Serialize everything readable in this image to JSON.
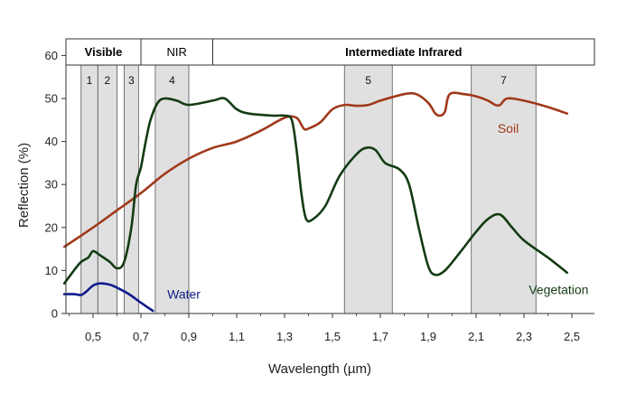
{
  "chart_data": {
    "type": "line",
    "xlabel": "Wavelength (µm)",
    "ylabel": "Reflection (%)",
    "xlim": [
      0.38,
      2.5
    ],
    "ylim": [
      0,
      62
    ],
    "x_ticks": [
      {
        "value": 0.5,
        "label": "0,5"
      },
      {
        "value": 0.7,
        "label": "0,7"
      },
      {
        "value": 0.9,
        "label": "0,9"
      },
      {
        "value": 1.1,
        "label": "1,1"
      },
      {
        "value": 1.3,
        "label": "1,3"
      },
      {
        "value": 1.5,
        "label": "1,5"
      },
      {
        "value": 1.7,
        "label": "1,7"
      },
      {
        "value": 1.9,
        "label": "1,9"
      },
      {
        "value": 2.1,
        "label": "2,1"
      },
      {
        "value": 2.3,
        "label": "2,3"
      },
      {
        "value": 2.5,
        "label": "2,5"
      }
    ],
    "y_ticks": [
      {
        "value": 0,
        "label": "0"
      },
      {
        "value": 10,
        "label": "10"
      },
      {
        "value": 20,
        "label": "20"
      },
      {
        "value": 30,
        "label": "30"
      },
      {
        "value": 40,
        "label": "40"
      },
      {
        "value": 50,
        "label": "50"
      },
      {
        "value": 60,
        "label": "60"
      }
    ],
    "regions": [
      {
        "label": "Visible",
        "from": 0.38,
        "to": 0.7,
        "bold": true
      },
      {
        "label": "NIR",
        "from": 0.7,
        "to": 1.0,
        "bold": false
      },
      {
        "label": "Intermediate Infrared",
        "from": 1.0,
        "to": 2.5,
        "bold": true
      }
    ],
    "bands": [
      {
        "label": "1",
        "from": 0.45,
        "to": 0.52
      },
      {
        "label": "2",
        "from": 0.52,
        "to": 0.6
      },
      {
        "label": "3",
        "from": 0.63,
        "to": 0.69
      },
      {
        "label": "4",
        "from": 0.76,
        "to": 0.9
      },
      {
        "label": "5",
        "from": 1.55,
        "to": 1.75
      },
      {
        "label": "7",
        "from": 2.08,
        "to": 2.35
      }
    ],
    "series": [
      {
        "name": "Soil",
        "color": "#a0391a",
        "points": [
          [
            0.38,
            15.5
          ],
          [
            0.5,
            20
          ],
          [
            0.6,
            24
          ],
          [
            0.7,
            28
          ],
          [
            0.8,
            32.5
          ],
          [
            0.9,
            36
          ],
          [
            1.0,
            38.5
          ],
          [
            1.1,
            40
          ],
          [
            1.2,
            42.5
          ],
          [
            1.3,
            45.5
          ],
          [
            1.35,
            45.5
          ],
          [
            1.38,
            43
          ],
          [
            1.4,
            43
          ],
          [
            1.45,
            44.5
          ],
          [
            1.5,
            47.5
          ],
          [
            1.55,
            48.5
          ],
          [
            1.6,
            48.3
          ],
          [
            1.65,
            48.5
          ],
          [
            1.7,
            49.5
          ],
          [
            1.8,
            51
          ],
          [
            1.85,
            51
          ],
          [
            1.9,
            49
          ],
          [
            1.93,
            46.5
          ],
          [
            1.95,
            46
          ],
          [
            1.97,
            47
          ],
          [
            1.99,
            51
          ],
          [
            2.05,
            51
          ],
          [
            2.1,
            50.5
          ],
          [
            2.15,
            49.5
          ],
          [
            2.18,
            48.5
          ],
          [
            2.2,
            48.5
          ],
          [
            2.23,
            50
          ],
          [
            2.3,
            49.5
          ],
          [
            2.4,
            48
          ],
          [
            2.48,
            46.5
          ]
        ]
      },
      {
        "name": "Vegetation",
        "color": "#133b13",
        "points": [
          [
            0.38,
            7
          ],
          [
            0.42,
            10
          ],
          [
            0.45,
            12
          ],
          [
            0.48,
            13
          ],
          [
            0.5,
            14.5
          ],
          [
            0.53,
            13.5
          ],
          [
            0.57,
            12
          ],
          [
            0.6,
            10.5
          ],
          [
            0.63,
            12
          ],
          [
            0.66,
            20
          ],
          [
            0.68,
            30
          ],
          [
            0.7,
            34
          ],
          [
            0.72,
            40
          ],
          [
            0.74,
            45
          ],
          [
            0.77,
            49
          ],
          [
            0.8,
            50
          ],
          [
            0.85,
            49.5
          ],
          [
            0.9,
            48.5
          ],
          [
            1.0,
            49.5
          ],
          [
            1.05,
            50
          ],
          [
            1.1,
            47.5
          ],
          [
            1.15,
            46.5
          ],
          [
            1.25,
            46
          ],
          [
            1.3,
            46
          ],
          [
            1.33,
            45
          ],
          [
            1.35,
            38
          ],
          [
            1.37,
            28
          ],
          [
            1.39,
            22
          ],
          [
            1.42,
            22
          ],
          [
            1.47,
            25
          ],
          [
            1.53,
            32
          ],
          [
            1.6,
            37
          ],
          [
            1.64,
            38.5
          ],
          [
            1.68,
            38
          ],
          [
            1.72,
            35
          ],
          [
            1.78,
            33.5
          ],
          [
            1.82,
            30
          ],
          [
            1.86,
            20
          ],
          [
            1.9,
            11
          ],
          [
            1.93,
            9
          ],
          [
            1.97,
            10
          ],
          [
            2.03,
            14
          ],
          [
            2.1,
            19
          ],
          [
            2.15,
            22
          ],
          [
            2.2,
            23
          ],
          [
            2.25,
            20
          ],
          [
            2.3,
            17
          ],
          [
            2.4,
            13
          ],
          [
            2.48,
            9.5
          ]
        ]
      },
      {
        "name": "Water",
        "color": "#0f1b8a",
        "points": [
          [
            0.38,
            4.5
          ],
          [
            0.42,
            4.5
          ],
          [
            0.45,
            4.3
          ],
          [
            0.47,
            5
          ],
          [
            0.5,
            6.5
          ],
          [
            0.53,
            7
          ],
          [
            0.57,
            6.7
          ],
          [
            0.6,
            6
          ],
          [
            0.65,
            4.5
          ],
          [
            0.7,
            2.5
          ],
          [
            0.75,
            0.6
          ]
        ]
      }
    ],
    "series_labels": [
      {
        "name": "Soil",
        "x": 2.19,
        "y": 42
      },
      {
        "name": "Vegetation",
        "x": 2.32,
        "y": 4.5
      },
      {
        "name": "Water",
        "x": 0.81,
        "y": 3.5
      }
    ],
    "grid": false,
    "legend": "inline labels"
  }
}
